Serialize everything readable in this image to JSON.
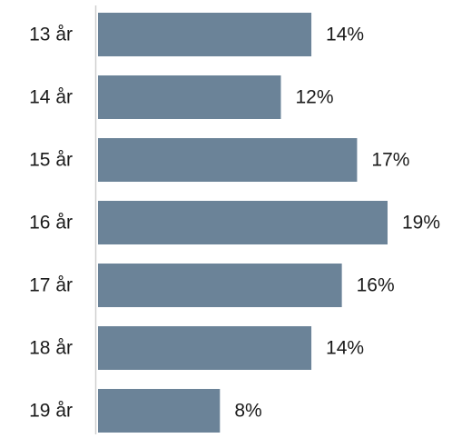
{
  "chart_data": {
    "type": "bar",
    "orientation": "horizontal",
    "title": "",
    "xlabel": "",
    "ylabel": "",
    "categories": [
      "13 år",
      "14 år",
      "15 år",
      "16 år",
      "17 år",
      "18 år",
      "19 år"
    ],
    "values": [
      14,
      12,
      17,
      19,
      16,
      14,
      8
    ],
    "value_labels": [
      "14%",
      "12%",
      "17%",
      "19%",
      "16%",
      "14%",
      "8%"
    ],
    "unit": "%",
    "xlim": [
      0,
      19
    ],
    "grid": false,
    "legend": "none",
    "colors": {
      "bar": "#6B8398",
      "axis": "#CFCFCF",
      "text": "#1A1A1A",
      "background": "#FFFFFF"
    }
  }
}
